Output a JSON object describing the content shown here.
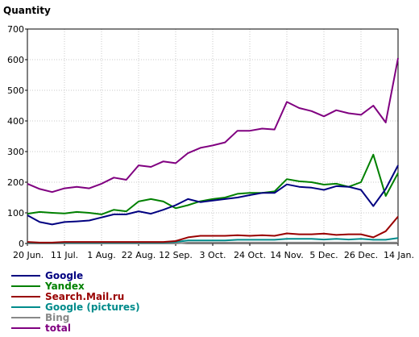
{
  "chart_data": {
    "type": "line",
    "ylabel": "Quantity",
    "ylim": [
      0,
      700
    ],
    "yticks": [
      "0",
      "100",
      "200",
      "300",
      "400",
      "500",
      "600",
      "700"
    ],
    "xticks": [
      "20 Jun.",
      "11 Jul.",
      "1 Aug.",
      "22 Aug.",
      "12 Sep.",
      "3 Oct.",
      "24 Oct.",
      "14 Nov.",
      "5 Dec.",
      "26 Dec.",
      "14 Jan."
    ],
    "tick_positions": [
      0,
      3,
      6,
      9,
      12,
      15,
      18,
      21,
      24,
      27,
      30
    ],
    "grid": true,
    "legend_position": "bottom-left",
    "series": [
      {
        "name": "Google",
        "color": "#000080",
        "values": [
          92,
          70,
          62,
          70,
          72,
          75,
          85,
          95,
          95,
          105,
          97,
          110,
          125,
          145,
          135,
          140,
          145,
          150,
          158,
          165,
          165,
          193,
          185,
          182,
          175,
          187,
          185,
          175,
          122,
          178,
          255
        ]
      },
      {
        "name": "Yandex",
        "color": "#008000",
        "values": [
          97,
          103,
          100,
          98,
          103,
          100,
          95,
          110,
          105,
          137,
          145,
          137,
          115,
          125,
          138,
          145,
          150,
          162,
          165,
          165,
          170,
          210,
          203,
          200,
          192,
          195,
          185,
          200,
          290,
          155,
          230
        ]
      },
      {
        "name": "Search.Mail.ru",
        "color": "#990000",
        "values": [
          5,
          3,
          3,
          5,
          5,
          5,
          5,
          5,
          5,
          5,
          5,
          5,
          8,
          20,
          25,
          25,
          25,
          27,
          25,
          27,
          25,
          33,
          30,
          30,
          32,
          28,
          30,
          30,
          20,
          40,
          88
        ]
      },
      {
        "name": "Google (pictures)",
        "color": "#008b8b",
        "values": [
          3,
          2,
          2,
          3,
          3,
          3,
          3,
          3,
          3,
          3,
          3,
          3,
          5,
          10,
          10,
          10,
          10,
          12,
          12,
          12,
          12,
          15,
          15,
          15,
          13,
          15,
          13,
          15,
          12,
          12,
          18
        ]
      },
      {
        "name": "Bing",
        "color": "#888888",
        "values": [
          0,
          0,
          0,
          0,
          0,
          0,
          0,
          0,
          0,
          0,
          0,
          0,
          0,
          3,
          3,
          3,
          3,
          3,
          3,
          3,
          3,
          3,
          3,
          3,
          3,
          3,
          3,
          3,
          3,
          3,
          3
        ]
      },
      {
        "name": "total",
        "color": "#800080",
        "values": [
          195,
          178,
          168,
          180,
          185,
          180,
          195,
          215,
          208,
          255,
          250,
          268,
          262,
          295,
          312,
          320,
          330,
          368,
          368,
          375,
          372,
          462,
          442,
          432,
          415,
          435,
          425,
          420,
          450,
          395,
          605
        ]
      }
    ]
  }
}
